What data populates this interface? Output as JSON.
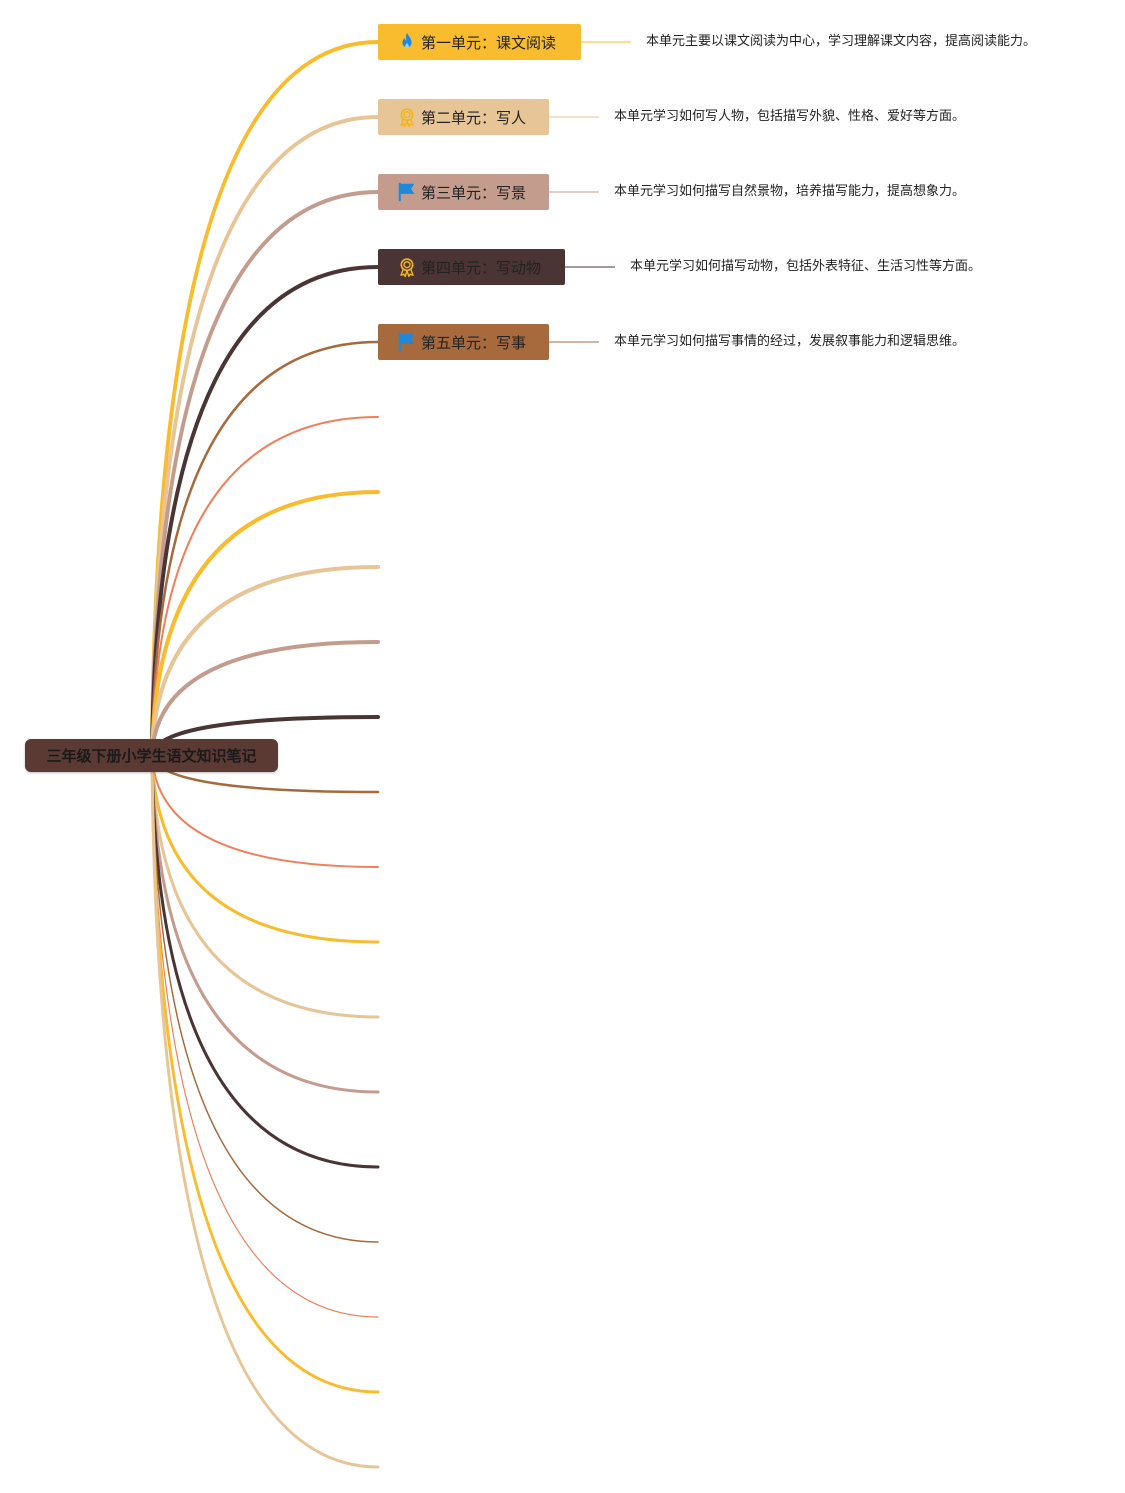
{
  "root": {
    "title": "三年级下册小学生语文知识笔记"
  },
  "units": [
    {
      "label": "第一单元：课文阅读",
      "note": "本单元主要以课文阅读为中心，学习理解课文内容，提高阅读能力。",
      "icon": "flame-icon",
      "color": "#f9bc2f",
      "text_color": "#222222"
    },
    {
      "label": "第二单元：写人",
      "note": "本单元学习如何写人物，包括描写外貌、性格、爱好等方面。",
      "icon": "medal-icon",
      "color": "#e7c596",
      "text_color": "#222222"
    },
    {
      "label": "第三单元：写景",
      "note": "本单元学习如何描写自然景物，培养描写能力，提高想象力。",
      "icon": "flag-icon",
      "color": "#c49c8d",
      "text_color": "#222222"
    },
    {
      "label": "第四单元：写动物",
      "note": "本单元学习如何描写动物，包括外表特征、生活习性等方面。",
      "icon": "medal-icon",
      "color": "#4a3434",
      "text_color": "#222222"
    },
    {
      "label": "第五单元：写事",
      "note": "本单元学习如何描写事情的经过，发展叙事能力和逻辑思维。",
      "icon": "flag-icon",
      "color": "#a76a3d",
      "text_color": "#222222"
    }
  ],
  "colors": {
    "branch_palette": [
      "#f9bc2f",
      "#e7c596",
      "#c49c8d",
      "#4a3434",
      "#a76a3d",
      "#f07f5b"
    ],
    "root_bg": "#5b3a34",
    "icon_blue": "#1f88d8",
    "icon_gold": "#f2b51d"
  }
}
